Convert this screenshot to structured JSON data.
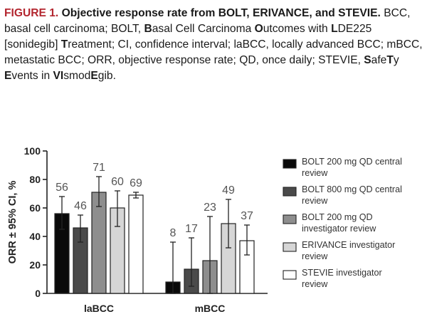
{
  "caption": {
    "label": "FIGURE 1.",
    "title": "Objective response rate from BOLT, ERIVANCE, and STEVIE.",
    "segments": [
      {
        "text": "BCC, basal cell carcinoma; BOLT, ",
        "bold": false
      },
      {
        "text": "B",
        "bold": true
      },
      {
        "text": "asal Cell Carcinoma ",
        "bold": false
      },
      {
        "text": "O",
        "bold": true
      },
      {
        "text": "utcomes with ",
        "bold": false
      },
      {
        "text": "L",
        "bold": true
      },
      {
        "text": "DE225 [sonidegib] ",
        "bold": false
      },
      {
        "text": "T",
        "bold": true
      },
      {
        "text": "reatment; CI, confidence interval; laBCC, locally advanced BCC; mBCC, metastatic BCC; ORR, objective response rate; QD, once daily; STEVIE, ",
        "bold": false
      },
      {
        "text": "S",
        "bold": true
      },
      {
        "text": "afe",
        "bold": false
      },
      {
        "text": "T",
        "bold": true
      },
      {
        "text": "y ",
        "bold": false
      },
      {
        "text": "E",
        "bold": true
      },
      {
        "text": "vents in ",
        "bold": false
      },
      {
        "text": "VI",
        "bold": true
      },
      {
        "text": "smod",
        "bold": false
      },
      {
        "text": "E",
        "bold": true
      },
      {
        "text": "gib.",
        "bold": false
      }
    ]
  },
  "chart_data": {
    "type": "bar",
    "title": "",
    "xlabel": "",
    "ylabel": "ORR ± 95% CI, %",
    "ylim": [
      0,
      100
    ],
    "yticks": [
      0,
      20,
      40,
      60,
      80,
      100
    ],
    "categories": [
      "laBCC",
      "mBCC"
    ],
    "series": [
      {
        "name": "BOLT 200 mg QD central review",
        "color": "#0a0a0a",
        "values": [
          56,
          8
        ],
        "ci_low": [
          45,
          0
        ],
        "ci_high": [
          68,
          36
        ]
      },
      {
        "name": "BOLT 800 mg QD central review",
        "color": "#4a4a4a",
        "values": [
          46,
          17
        ],
        "ci_low": [
          36,
          5
        ],
        "ci_high": [
          55,
          39
        ]
      },
      {
        "name": "BOLT 200 mg QD investigator review",
        "color": "#8e8e8e",
        "values": [
          71,
          23
        ],
        "ci_low": [
          61,
          0
        ],
        "ci_high": [
          82,
          54
        ]
      },
      {
        "name": "ERIVANCE investigator review",
        "color": "#d6d6d6",
        "values": [
          60,
          49
        ],
        "ci_low": [
          47,
          32
        ],
        "ci_high": [
          72,
          66
        ]
      },
      {
        "name": "STEVIE investigator review",
        "color": "#ffffff",
        "values": [
          69,
          37
        ],
        "ci_low": [
          67,
          27
        ],
        "ci_high": [
          71,
          48
        ]
      }
    ]
  }
}
